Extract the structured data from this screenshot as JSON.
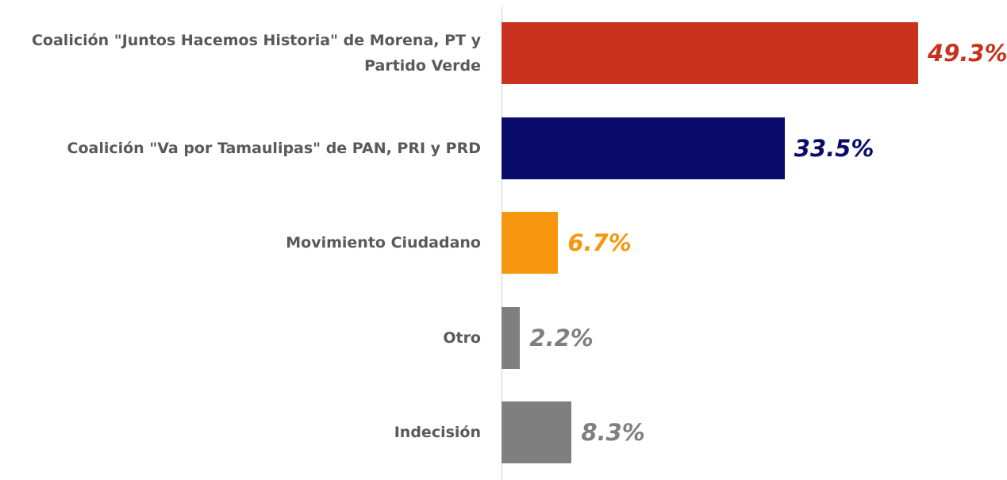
{
  "chart_data": {
    "type": "bar",
    "orientation": "horizontal",
    "categories": [
      "Coalición \"Juntos Hacemos Historia\" de Morena, PT y Partido Verde",
      "Coalición \"Va por Tamaulipas\" de PAN, PRI y PRD",
      "Movimiento Ciudadano",
      "Otro",
      "Indecisión"
    ],
    "values": [
      49.3,
      33.5,
      6.7,
      2.2,
      8.3
    ],
    "value_labels": [
      "49.3%",
      "33.5%",
      "6.7%",
      "2.2%",
      "8.3%"
    ],
    "colors": [
      "#c8321e",
      "#0a0a6b",
      "#f7960f",
      "#7f7f7f",
      "#7f7f7f"
    ],
    "label_colors": [
      "#c8321e",
      "#0a0a6b",
      "#f7960f",
      "#7f7f7f",
      "#7f7f7f"
    ]
  }
}
